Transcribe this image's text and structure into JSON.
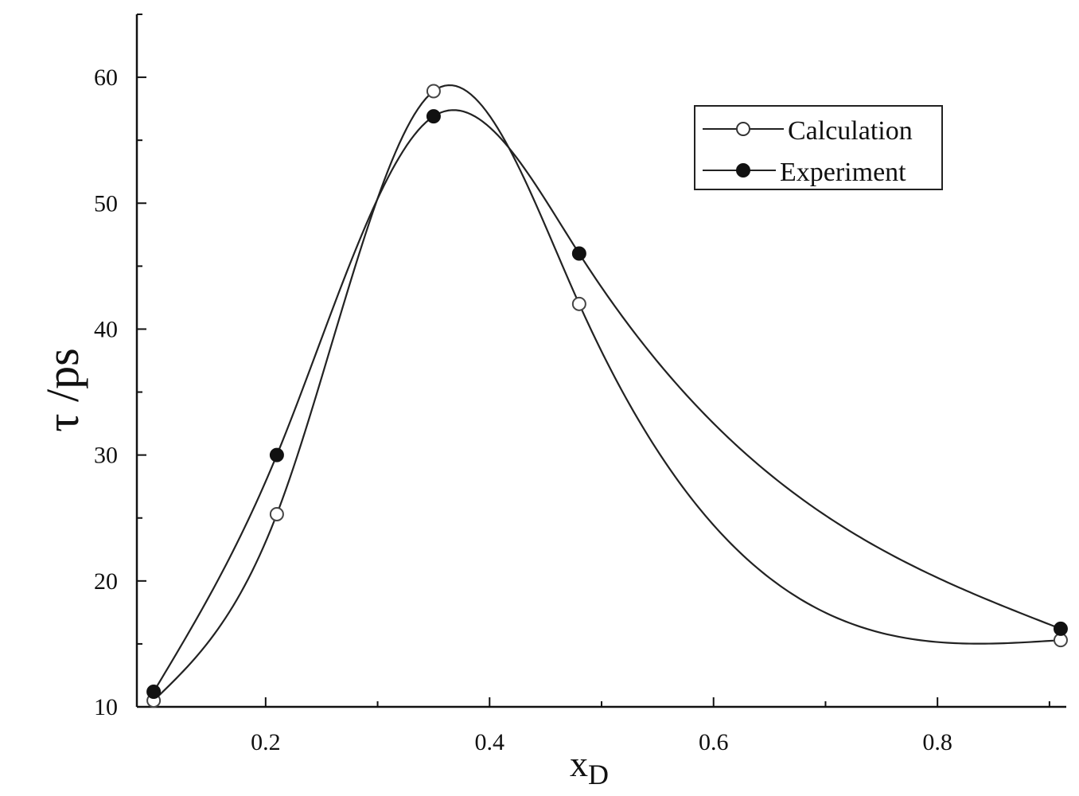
{
  "chart_data": {
    "type": "line",
    "title": "",
    "xlabel": "x",
    "xlabel_sub": "D",
    "ylabel": "τ /ps",
    "xlim": [
      0.085,
      0.915
    ],
    "ylim": [
      10,
      65
    ],
    "xticks": [
      0.2,
      0.4,
      0.6,
      0.8
    ],
    "xtick_labels": [
      "0.2",
      "0.4",
      "0.6",
      "0.8"
    ],
    "xminor": [
      0.1,
      0.3,
      0.5,
      0.7,
      0.9
    ],
    "yticks": [
      10,
      20,
      30,
      40,
      50,
      60
    ],
    "ytick_labels": [
      "10",
      "20",
      "30",
      "40",
      "50",
      "60"
    ],
    "yminor": [
      15,
      25,
      35,
      45,
      55,
      65
    ],
    "grid": false,
    "legend_position": "top-right",
    "series": [
      {
        "name": "Calculation",
        "marker": "open-circle",
        "x": [
          0.1,
          0.21,
          0.35,
          0.48,
          0.91
        ],
        "y": [
          10.5,
          25.3,
          58.9,
          42.0,
          15.3
        ]
      },
      {
        "name": "Experiment",
        "marker": "filled-circle",
        "x": [
          0.1,
          0.21,
          0.35,
          0.48,
          0.91
        ],
        "y": [
          11.2,
          30.0,
          56.9,
          46.0,
          16.2
        ]
      }
    ]
  }
}
